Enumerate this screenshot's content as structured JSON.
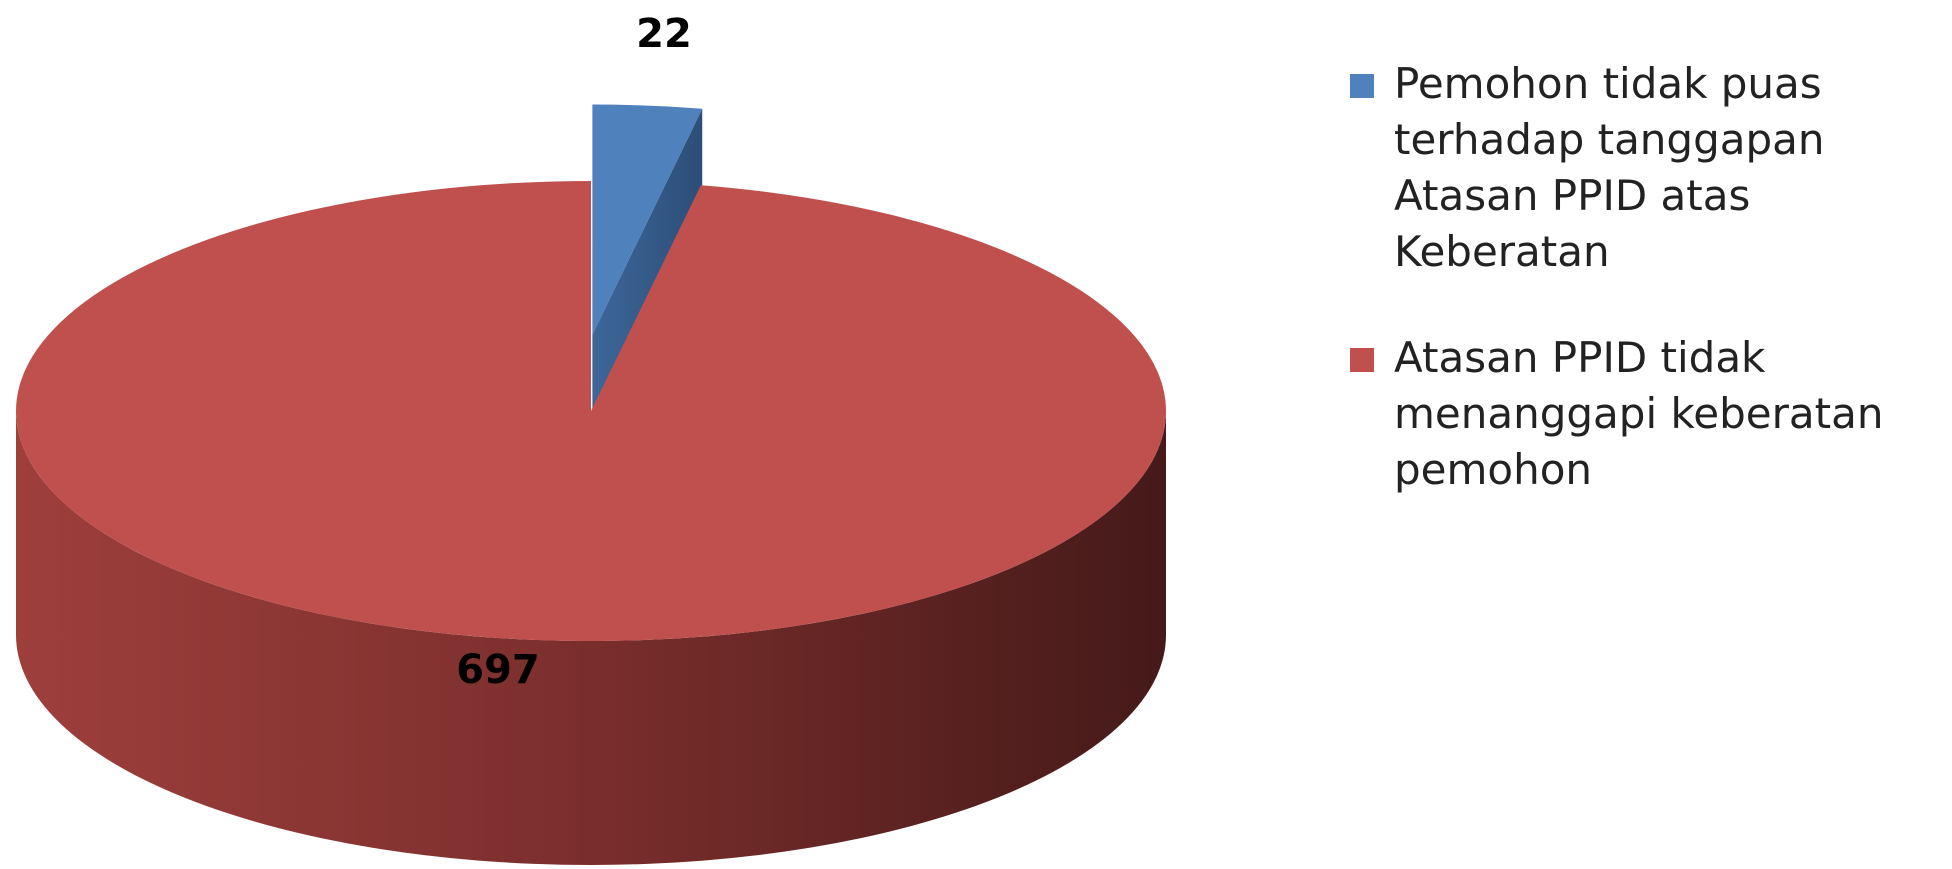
{
  "chart_data": {
    "type": "pie",
    "categories": [
      "Pemohon tidak puas terhadap tanggapan Atasan PPID atas Keberatan",
      "Atasan PPID tidak menanggapi keberatan pemohon"
    ],
    "values": [
      22,
      697
    ],
    "colors": [
      "#4f81bd",
      "#c0504d"
    ],
    "legend": "right"
  }
}
